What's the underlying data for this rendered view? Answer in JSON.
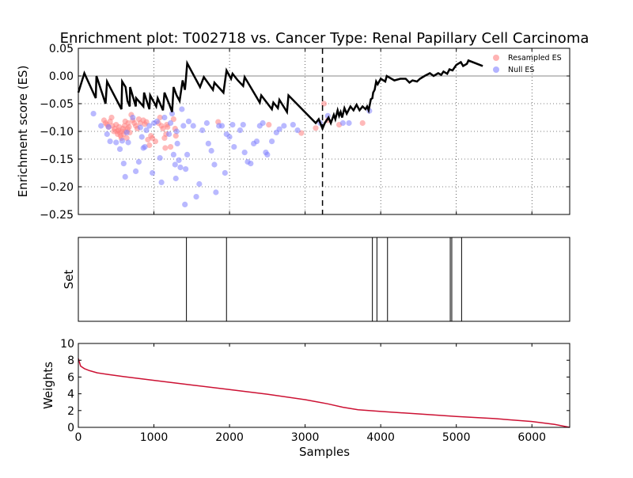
{
  "chart_data": [
    {
      "type": "line",
      "panel": "enrichment",
      "title": "Enrichment plot: T002718 vs. Cancer Type: Renal Papillary Cell Carcinoma",
      "xlabel": "",
      "ylabel": "Enrichment score (ES)",
      "xlim": [
        0,
        6500
      ],
      "ylim": [
        -0.25,
        0.05
      ],
      "yticks": [
        0.05,
        0.0,
        -0.05,
        -0.1,
        -0.15,
        -0.2,
        -0.25
      ],
      "ytick_labels": [
        "0.05",
        "0.00",
        "−0.05",
        "−0.10",
        "−0.15",
        "−0.20",
        "−0.25"
      ],
      "grid": true,
      "legend_position": "top-right",
      "legend": [
        {
          "label": "Resampled ES",
          "color": "#ff8080"
        },
        {
          "label": "Null ES",
          "color": "#8080ff"
        }
      ],
      "max_deviation_x": 3230,
      "es_curve": [
        [
          0,
          -0.03
        ],
        [
          80,
          0.005
        ],
        [
          130,
          -0.01
        ],
        [
          230,
          -0.04
        ],
        [
          240,
          0.0
        ],
        [
          360,
          -0.05
        ],
        [
          380,
          -0.01
        ],
        [
          570,
          -0.06
        ],
        [
          580,
          -0.01
        ],
        [
          625,
          -0.02
        ],
        [
          650,
          -0.045
        ],
        [
          680,
          -0.055
        ],
        [
          685,
          -0.02
        ],
        [
          760,
          -0.055
        ],
        [
          765,
          -0.04
        ],
        [
          860,
          -0.055
        ],
        [
          870,
          -0.03
        ],
        [
          940,
          -0.06
        ],
        [
          950,
          -0.035
        ],
        [
          1030,
          -0.055
        ],
        [
          1050,
          -0.04
        ],
        [
          1120,
          -0.062
        ],
        [
          1140,
          -0.03
        ],
        [
          1200,
          -0.05
        ],
        [
          1240,
          -0.065
        ],
        [
          1260,
          -0.02
        ],
        [
          1300,
          -0.035
        ],
        [
          1340,
          -0.045
        ],
        [
          1380,
          -0.008
        ],
        [
          1410,
          -0.025
        ],
        [
          1420,
          -0.01
        ],
        [
          1440,
          0.023
        ],
        [
          1610,
          -0.02
        ],
        [
          1660,
          -0.002
        ],
        [
          1780,
          -0.025
        ],
        [
          1800,
          -0.012
        ],
        [
          1920,
          -0.03
        ],
        [
          1960,
          0.01
        ],
        [
          2020,
          -0.005
        ],
        [
          2040,
          0.004
        ],
        [
          2110,
          -0.008
        ],
        [
          2180,
          -0.018
        ],
        [
          2200,
          -0.002
        ],
        [
          2400,
          -0.048
        ],
        [
          2420,
          -0.035
        ],
        [
          2560,
          -0.06
        ],
        [
          2580,
          -0.048
        ],
        [
          2640,
          -0.058
        ],
        [
          2660,
          -0.043
        ],
        [
          2760,
          -0.065
        ],
        [
          2780,
          -0.035
        ],
        [
          3140,
          -0.085
        ],
        [
          3180,
          -0.078
        ],
        [
          3230,
          -0.095
        ],
        [
          3260,
          -0.085
        ],
        [
          3310,
          -0.075
        ],
        [
          3340,
          -0.085
        ],
        [
          3380,
          -0.07
        ],
        [
          3400,
          -0.078
        ],
        [
          3430,
          -0.062
        ],
        [
          3450,
          -0.072
        ],
        [
          3470,
          -0.065
        ],
        [
          3490,
          -0.075
        ],
        [
          3520,
          -0.058
        ],
        [
          3550,
          -0.068
        ],
        [
          3600,
          -0.055
        ],
        [
          3640,
          -0.062
        ],
        [
          3680,
          -0.052
        ],
        [
          3720,
          -0.062
        ],
        [
          3760,
          -0.055
        ],
        [
          3800,
          -0.06
        ],
        [
          3820,
          -0.055
        ],
        [
          3840,
          -0.062
        ],
        [
          3870,
          -0.042
        ],
        [
          3890,
          -0.04
        ],
        [
          3900,
          -0.03
        ],
        [
          3920,
          -0.025
        ],
        [
          3940,
          -0.01
        ],
        [
          3960,
          -0.015
        ],
        [
          4000,
          -0.005
        ],
        [
          4060,
          -0.01
        ],
        [
          4080,
          0.0
        ],
        [
          4180,
          -0.008
        ],
        [
          4260,
          -0.005
        ],
        [
          4330,
          -0.005
        ],
        [
          4380,
          -0.012
        ],
        [
          4420,
          -0.008
        ],
        [
          4480,
          -0.01
        ],
        [
          4520,
          -0.005
        ],
        [
          4580,
          0.0
        ],
        [
          4650,
          0.005
        ],
        [
          4700,
          0.0
        ],
        [
          4760,
          0.005
        ],
        [
          4800,
          0.002
        ],
        [
          4830,
          0.008
        ],
        [
          4880,
          0.004
        ],
        [
          4910,
          0.012
        ],
        [
          4950,
          0.01
        ],
        [
          5000,
          0.02
        ],
        [
          5060,
          0.025
        ],
        [
          5090,
          0.018
        ],
        [
          5140,
          0.022
        ],
        [
          5160,
          0.028
        ],
        [
          5350,
          0.018
        ]
      ],
      "resampled_es": [
        [
          340,
          -0.08
        ],
        [
          360,
          -0.085
        ],
        [
          380,
          -0.088
        ],
        [
          400,
          -0.092
        ],
        [
          420,
          -0.082
        ],
        [
          440,
          -0.075
        ],
        [
          450,
          -0.09
        ],
        [
          470,
          -0.1
        ],
        [
          480,
          -0.095
        ],
        [
          500,
          -0.088
        ],
        [
          510,
          -0.1
        ],
        [
          520,
          -0.105
        ],
        [
          530,
          -0.098
        ],
        [
          540,
          -0.092
        ],
        [
          550,
          -0.102
        ],
        [
          560,
          -0.108
        ],
        [
          570,
          -0.112
        ],
        [
          580,
          -0.1
        ],
        [
          590,
          -0.095
        ],
        [
          600,
          -0.105
        ],
        [
          610,
          -0.09
        ],
        [
          620,
          -0.082
        ],
        [
          630,
          -0.1
        ],
        [
          640,
          -0.112
        ],
        [
          650,
          -0.095
        ],
        [
          660,
          -0.085
        ],
        [
          670,
          -0.092
        ],
        [
          680,
          -0.102
        ],
        [
          700,
          -0.07
        ],
        [
          720,
          -0.08
        ],
        [
          740,
          -0.085
        ],
        [
          760,
          -0.09
        ],
        [
          780,
          -0.095
        ],
        [
          800,
          -0.078
        ],
        [
          820,
          -0.085
        ],
        [
          860,
          -0.08
        ],
        [
          880,
          -0.087
        ],
        [
          900,
          -0.083
        ],
        [
          920,
          -0.115
        ],
        [
          940,
          -0.125
        ],
        [
          960,
          -0.108
        ],
        [
          980,
          -0.112
        ],
        [
          1020,
          -0.118
        ],
        [
          1060,
          -0.085
        ],
        [
          1080,
          -0.075
        ],
        [
          1100,
          -0.09
        ],
        [
          1120,
          -0.095
        ],
        [
          1140,
          -0.112
        ],
        [
          1150,
          -0.13
        ],
        [
          1160,
          -0.105
        ],
        [
          1170,
          -0.088
        ],
        [
          1180,
          -0.092
        ],
        [
          1220,
          -0.128
        ],
        [
          1260,
          -0.078
        ],
        [
          1280,
          -0.095
        ],
        [
          1290,
          -0.108
        ],
        [
          1850,
          -0.083
        ],
        [
          2520,
          -0.088
        ],
        [
          2950,
          -0.103
        ],
        [
          3140,
          -0.094
        ],
        [
          3250,
          -0.05
        ],
        [
          3300,
          -0.08
        ],
        [
          3450,
          -0.088
        ],
        [
          3760,
          -0.085
        ]
      ],
      "null_es": [
        [
          200,
          -0.068
        ],
        [
          300,
          -0.09
        ],
        [
          380,
          -0.105
        ],
        [
          400,
          -0.092
        ],
        [
          420,
          -0.118
        ],
        [
          500,
          -0.12
        ],
        [
          550,
          -0.132
        ],
        [
          580,
          -0.117
        ],
        [
          600,
          -0.158
        ],
        [
          620,
          -0.182
        ],
        [
          640,
          -0.102
        ],
        [
          660,
          -0.12
        ],
        [
          720,
          -0.075
        ],
        [
          760,
          -0.172
        ],
        [
          800,
          -0.155
        ],
        [
          820,
          -0.093
        ],
        [
          840,
          -0.11
        ],
        [
          860,
          -0.13
        ],
        [
          880,
          -0.128
        ],
        [
          900,
          -0.098
        ],
        [
          940,
          -0.09
        ],
        [
          980,
          -0.175
        ],
        [
          1000,
          -0.085
        ],
        [
          1040,
          -0.082
        ],
        [
          1080,
          -0.148
        ],
        [
          1100,
          -0.192
        ],
        [
          1140,
          -0.075
        ],
        [
          1200,
          -0.105
        ],
        [
          1220,
          -0.085
        ],
        [
          1240,
          -0.068
        ],
        [
          1260,
          -0.142
        ],
        [
          1280,
          -0.16
        ],
        [
          1290,
          -0.185
        ],
        [
          1300,
          -0.1
        ],
        [
          1310,
          -0.122
        ],
        [
          1330,
          -0.152
        ],
        [
          1350,
          -0.165
        ],
        [
          1370,
          -0.06
        ],
        [
          1390,
          -0.09
        ],
        [
          1410,
          -0.232
        ],
        [
          1420,
          -0.168
        ],
        [
          1440,
          -0.142
        ],
        [
          1460,
          -0.082
        ],
        [
          1520,
          -0.09
        ],
        [
          1560,
          -0.218
        ],
        [
          1600,
          -0.195
        ],
        [
          1640,
          -0.098
        ],
        [
          1700,
          -0.085
        ],
        [
          1720,
          -0.122
        ],
        [
          1760,
          -0.135
        ],
        [
          1800,
          -0.16
        ],
        [
          1820,
          -0.21
        ],
        [
          1860,
          -0.09
        ],
        [
          1900,
          -0.09
        ],
        [
          1940,
          -0.175
        ],
        [
          1960,
          -0.105
        ],
        [
          2000,
          -0.11
        ],
        [
          2040,
          -0.088
        ],
        [
          2060,
          -0.128
        ],
        [
          2140,
          -0.098
        ],
        [
          2180,
          -0.088
        ],
        [
          2200,
          -0.138
        ],
        [
          2240,
          -0.155
        ],
        [
          2280,
          -0.158
        ],
        [
          2320,
          -0.122
        ],
        [
          2360,
          -0.118
        ],
        [
          2400,
          -0.09
        ],
        [
          2440,
          -0.085
        ],
        [
          2480,
          -0.138
        ],
        [
          2500,
          -0.142
        ],
        [
          2560,
          -0.118
        ],
        [
          2620,
          -0.102
        ],
        [
          2660,
          -0.096
        ],
        [
          2720,
          -0.09
        ],
        [
          2840,
          -0.088
        ],
        [
          2900,
          -0.098
        ],
        [
          3200,
          -0.085
        ],
        [
          3300,
          -0.072
        ],
        [
          3500,
          -0.085
        ],
        [
          3580,
          -0.085
        ],
        [
          3850,
          -0.063
        ]
      ]
    },
    {
      "type": "bar",
      "panel": "set",
      "ylabel": "Set",
      "xlim": [
        0,
        6500
      ],
      "hit_positions": [
        1430,
        1960,
        3890,
        3950,
        4090,
        4920,
        4940,
        5070
      ]
    },
    {
      "type": "line",
      "panel": "weights",
      "xlabel": "Samples",
      "ylabel": "Weights",
      "xlim": [
        0,
        6500
      ],
      "ylim": [
        0,
        10
      ],
      "xticks": [
        0,
        1000,
        2000,
        3000,
        4000,
        5000,
        6000
      ],
      "xtick_labels": [
        "0",
        "1000",
        "2000",
        "3000",
        "4000",
        "5000",
        "6000"
      ],
      "yticks": [
        0,
        2,
        4,
        6,
        8,
        10
      ],
      "ytick_labels": [
        "0",
        "2",
        "4",
        "6",
        "8",
        "10"
      ],
      "line_color": "#cc1133",
      "weights_curve": [
        [
          0,
          8.2
        ],
        [
          30,
          7.3
        ],
        [
          80,
          7.0
        ],
        [
          150,
          6.75
        ],
        [
          250,
          6.5
        ],
        [
          400,
          6.3
        ],
        [
          600,
          6.05
        ],
        [
          1000,
          5.6
        ],
        [
          1500,
          5.05
        ],
        [
          2000,
          4.5
        ],
        [
          2500,
          3.95
        ],
        [
          3000,
          3.3
        ],
        [
          3300,
          2.8
        ],
        [
          3500,
          2.4
        ],
        [
          3700,
          2.1
        ],
        [
          4000,
          1.9
        ],
        [
          4500,
          1.6
        ],
        [
          5000,
          1.3
        ],
        [
          5500,
          1.05
        ],
        [
          6000,
          0.7
        ],
        [
          6300,
          0.35
        ],
        [
          6500,
          0.0
        ]
      ]
    }
  ]
}
